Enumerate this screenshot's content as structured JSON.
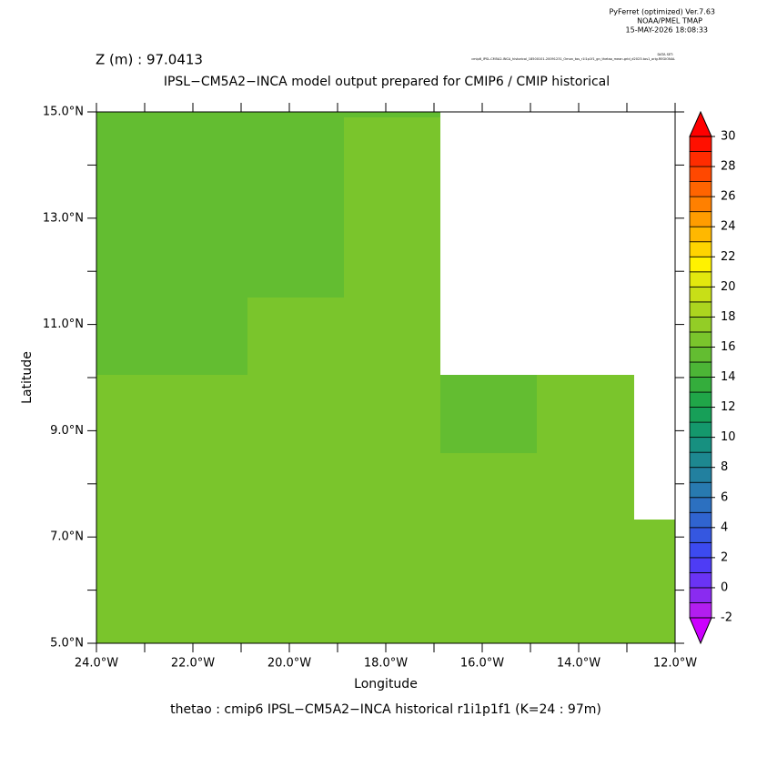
{
  "chart_data": {
    "type": "heatmap",
    "header": [
      "PyFerret (optimized) Ver.7.63",
      "NOAA/PMEL TMAP",
      "15-MAY-2026 18:08:33"
    ],
    "dataset_label": "DATA SET:",
    "dataset": "cmip6_IPSL-CM5A2-INCA_historical_18500101-20091231_Omon_tos_r1i1p1f1_gn_thetao_mean.grid_d2023-tos1_orig.REGIONAL",
    "title": "Z (m) : 97.0413",
    "subtitle": "IPSL−CM5A2−INCA model output prepared for CMIP6 / CMIP historical",
    "x_label": "Longitude",
    "y_label": "Latitude",
    "footer": "thetao : cmip6 IPSL−CM5A2−INCA historical r1i1p1f1    (K=24 : 97m)",
    "xlim": [
      -24,
      -12
    ],
    "ylim": [
      5,
      15
    ],
    "xticks": [
      {
        "value": -24,
        "label": "24.0°W"
      },
      {
        "value": -22,
        "label": "22.0°W"
      },
      {
        "value": -20,
        "label": "20.0°W"
      },
      {
        "value": -18,
        "label": "18.0°W"
      },
      {
        "value": -16,
        "label": "16.0°W"
      },
      {
        "value": -14,
        "label": "14.0°W"
      },
      {
        "value": -12,
        "label": "12.0°W"
      }
    ],
    "xminorticks": [
      -23,
      -21,
      -19,
      -17,
      -15,
      -13
    ],
    "yticks": [
      {
        "value": 5,
        "label": "5.0°N"
      },
      {
        "value": 7,
        "label": "7.0°N"
      },
      {
        "value": 9,
        "label": "9.0°N"
      },
      {
        "value": 11,
        "label": "11.0°N"
      },
      {
        "value": 13,
        "label": "13.0°N"
      },
      {
        "value": 15,
        "label": "15.0°N"
      }
    ],
    "yminorticks": [
      6,
      8,
      10,
      12,
      14
    ],
    "cells": [
      {
        "lon": [
          -24,
          -20.87
        ],
        "lat": [
          10.05,
          15
        ],
        "value": 15.6
      },
      {
        "lon": [
          -24,
          -20.87
        ],
        "lat": [
          5,
          10.05
        ],
        "value": 16.6
      },
      {
        "lon": [
          -20.87,
          -18.87
        ],
        "lat": [
          11.51,
          15
        ],
        "value": 15.6
      },
      {
        "lon": [
          -20.87,
          -18.87
        ],
        "lat": [
          5,
          11.51
        ],
        "value": 16.6
      },
      {
        "lon": [
          -18.87,
          -16.87
        ],
        "lat": [
          14.9,
          15
        ],
        "value": 15.6
      },
      {
        "lon": [
          -18.87,
          -16.87
        ],
        "lat": [
          5,
          14.9
        ],
        "value": 16.6
      },
      {
        "lon": [
          -16.87,
          -14.87
        ],
        "lat": [
          8.58,
          10.05
        ],
        "value": 15.6
      },
      {
        "lon": [
          -16.87,
          -14.87
        ],
        "lat": [
          5,
          8.58
        ],
        "value": 16.6
      },
      {
        "lon": [
          -14.87,
          -12.85
        ],
        "lat": [
          5,
          10.05
        ],
        "value": 16.6
      },
      {
        "lon": [
          -12.85,
          -12
        ],
        "lat": [
          5,
          7.33
        ],
        "value": 16.6
      }
    ],
    "colorbar": {
      "lim": [
        -2,
        30
      ],
      "ticks": [
        -2,
        0,
        2,
        4,
        6,
        8,
        10,
        12,
        14,
        16,
        18,
        20,
        22,
        24,
        26,
        28,
        30
      ],
      "under_color": "#cc00ff",
      "over_color": "#ff0000",
      "colors": [
        "#b21ef0",
        "#8a2bf0",
        "#6a33f5",
        "#4e3cf5",
        "#3c4af0",
        "#3557e0",
        "#3064d0",
        "#2c70c0",
        "#287ab0",
        "#22809f",
        "#1d8890",
        "#179080",
        "#14986c",
        "#179f58",
        "#20a648",
        "#34ad3c",
        "#4cb536",
        "#63bd31",
        "#7ac52c",
        "#93cd26",
        "#acd51f",
        "#c8df17",
        "#e3e80e",
        "#fff200",
        "#ffd400",
        "#ffb800",
        "#ff9c00",
        "#ff8000",
        "#ff6400",
        "#ff4800",
        "#ff2c00",
        "#ff1000"
      ]
    }
  }
}
